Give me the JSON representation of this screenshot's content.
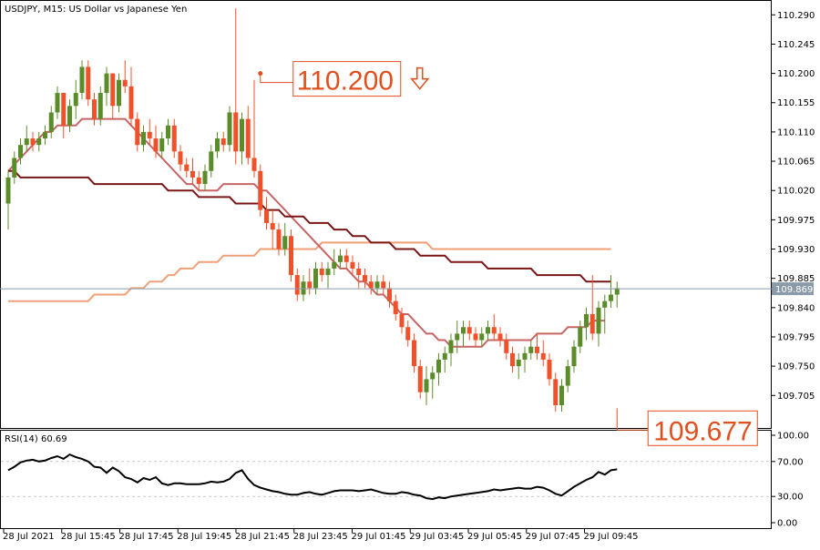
{
  "header": {
    "title": "USDJPY, M15:  US Dollar vs Japanese Yen"
  },
  "colors": {
    "bull": "#5b8c2a",
    "bear": "#f0502a",
    "ma_dark": "#7a1515",
    "ma_mid": "#c86464",
    "ma_light": "#f0a078",
    "price_line": "#8a9aa8",
    "annotation": "#e0501e",
    "grid": "#c8c8c8"
  },
  "chart_data": [
    {
      "type": "candlestick",
      "title": "USDJPY, M15:  US Dollar vs Japanese Yen",
      "ylim": [
        109.655,
        110.31
      ],
      "y_ticks": [
        "110.290",
        "110.245",
        "110.200",
        "110.155",
        "110.110",
        "110.065",
        "110.020",
        "109.975",
        "109.930",
        "109.885",
        "109.840",
        "109.795",
        "109.750",
        "109.705"
      ],
      "x_ticks": [
        "28 Jul 2021",
        "28 Jul 15:45",
        "28 Jul 17:45",
        "28 Jul 19:45",
        "28 Jul 21:45",
        "28 Jul 23:45",
        "29 Jul 01:45",
        "29 Jul 03:45",
        "29 Jul 05:45",
        "29 Jul 07:45",
        "29 Jul 09:45"
      ],
      "current_price": "109.869",
      "annotations": [
        {
          "label": "110.200",
          "arrow": "down-outline-arrow",
          "value": 110.2,
          "bar": 41
        },
        {
          "label": "109.677",
          "value": 109.677,
          "bar": 99
        }
      ],
      "candles": [
        [
          110.0,
          110.05,
          109.96,
          110.04
        ],
        [
          110.04,
          110.08,
          110.03,
          110.07
        ],
        [
          110.07,
          110.1,
          110.06,
          110.09
        ],
        [
          110.09,
          110.12,
          110.08,
          110.1
        ],
        [
          110.1,
          110.11,
          110.08,
          110.09
        ],
        [
          110.09,
          110.11,
          110.08,
          110.1
        ],
        [
          110.1,
          110.12,
          110.09,
          110.11
        ],
        [
          110.11,
          110.15,
          110.1,
          110.14
        ],
        [
          110.14,
          110.18,
          110.13,
          110.17
        ],
        [
          110.17,
          110.17,
          110.1,
          110.12
        ],
        [
          110.12,
          110.16,
          110.11,
          110.15
        ],
        [
          110.15,
          110.19,
          110.13,
          110.17
        ],
        [
          110.17,
          110.22,
          110.16,
          110.21
        ],
        [
          110.21,
          110.22,
          110.15,
          110.16
        ],
        [
          110.16,
          110.17,
          110.12,
          110.13
        ],
        [
          110.13,
          110.18,
          110.12,
          110.17
        ],
        [
          110.17,
          110.21,
          110.15,
          110.2
        ],
        [
          110.2,
          110.2,
          110.13,
          110.15
        ],
        [
          110.15,
          110.2,
          110.14,
          110.19
        ],
        [
          110.19,
          110.22,
          110.17,
          110.18
        ],
        [
          110.18,
          110.21,
          110.12,
          110.13
        ],
        [
          110.13,
          110.14,
          110.08,
          110.09
        ],
        [
          110.09,
          110.12,
          110.08,
          110.11
        ],
        [
          110.11,
          110.13,
          110.09,
          110.1
        ],
        [
          110.1,
          110.12,
          110.07,
          110.08
        ],
        [
          110.08,
          110.11,
          110.07,
          110.1
        ],
        [
          110.1,
          110.13,
          110.09,
          110.12
        ],
        [
          110.12,
          110.13,
          110.07,
          110.08
        ],
        [
          110.08,
          110.09,
          110.05,
          110.06
        ],
        [
          110.06,
          110.07,
          110.04,
          110.05
        ],
        [
          110.05,
          110.07,
          110.03,
          110.04
        ],
        [
          110.04,
          110.05,
          110.02,
          110.03
        ],
        [
          110.03,
          110.06,
          110.02,
          110.05
        ],
        [
          110.05,
          110.09,
          110.04,
          110.08
        ],
        [
          110.08,
          110.11,
          110.07,
          110.1
        ],
        [
          110.1,
          110.11,
          110.08,
          110.09
        ],
        [
          110.09,
          110.15,
          110.08,
          110.14
        ],
        [
          110.14,
          110.3,
          110.06,
          110.08
        ],
        [
          110.08,
          110.14,
          110.06,
          110.13
        ],
        [
          110.13,
          110.15,
          110.06,
          110.07
        ],
        [
          110.07,
          110.19,
          110.04,
          110.05
        ],
        [
          110.05,
          110.06,
          109.98,
          109.99
        ],
        [
          109.99,
          110.01,
          109.96,
          109.97
        ],
        [
          109.97,
          109.99,
          109.93,
          109.96
        ],
        [
          109.96,
          109.97,
          109.92,
          109.93
        ],
        [
          109.93,
          109.97,
          109.92,
          109.95
        ],
        [
          109.95,
          109.96,
          109.88,
          109.89
        ],
        [
          109.89,
          109.9,
          109.85,
          109.86
        ],
        [
          109.86,
          109.89,
          109.85,
          109.88
        ],
        [
          109.88,
          109.9,
          109.86,
          109.87
        ],
        [
          109.87,
          109.91,
          109.86,
          109.9
        ],
        [
          109.9,
          109.91,
          109.88,
          109.89
        ],
        [
          109.89,
          109.91,
          109.87,
          109.9
        ],
        [
          109.9,
          109.93,
          109.89,
          109.91
        ],
        [
          109.91,
          109.93,
          109.9,
          109.92
        ],
        [
          109.92,
          109.93,
          109.9,
          109.91
        ],
        [
          109.91,
          109.92,
          109.89,
          109.9
        ],
        [
          109.9,
          109.91,
          109.87,
          109.89
        ],
        [
          109.89,
          109.9,
          109.87,
          109.88
        ],
        [
          109.88,
          109.89,
          109.86,
          109.87
        ],
        [
          109.87,
          109.89,
          109.86,
          109.88
        ],
        [
          109.88,
          109.89,
          109.86,
          109.87
        ],
        [
          109.87,
          109.88,
          109.84,
          109.85
        ],
        [
          109.85,
          109.86,
          109.82,
          109.83
        ],
        [
          109.83,
          109.84,
          109.8,
          109.81
        ],
        [
          109.81,
          109.82,
          109.78,
          109.79
        ],
        [
          109.79,
          109.8,
          109.74,
          109.75
        ],
        [
          109.75,
          109.76,
          109.7,
          109.71
        ],
        [
          109.71,
          109.75,
          109.69,
          109.73
        ],
        [
          109.73,
          109.75,
          109.7,
          109.74
        ],
        [
          109.74,
          109.77,
          109.72,
          109.76
        ],
        [
          109.76,
          109.78,
          109.74,
          109.77
        ],
        [
          109.77,
          109.8,
          109.75,
          109.79
        ],
        [
          109.79,
          109.82,
          109.77,
          109.8
        ],
        [
          109.8,
          109.82,
          109.78,
          109.81
        ],
        [
          109.81,
          109.82,
          109.79,
          109.8
        ],
        [
          109.8,
          109.81,
          109.78,
          109.79
        ],
        [
          109.79,
          109.81,
          109.78,
          109.8
        ],
        [
          109.8,
          109.82,
          109.79,
          109.81
        ],
        [
          109.81,
          109.83,
          109.79,
          109.8
        ],
        [
          109.8,
          109.81,
          109.78,
          109.79
        ],
        [
          109.79,
          109.8,
          109.76,
          109.77
        ],
        [
          109.77,
          109.78,
          109.74,
          109.75
        ],
        [
          109.75,
          109.77,
          109.73,
          109.76
        ],
        [
          109.76,
          109.78,
          109.74,
          109.77
        ],
        [
          109.77,
          109.79,
          109.76,
          109.78
        ],
        [
          109.78,
          109.8,
          109.76,
          109.77
        ],
        [
          109.77,
          109.79,
          109.75,
          109.76
        ],
        [
          109.76,
          109.77,
          109.72,
          109.73
        ],
        [
          109.73,
          109.74,
          109.68,
          109.69
        ],
        [
          109.69,
          109.73,
          109.68,
          109.72
        ],
        [
          109.72,
          109.76,
          109.71,
          109.75
        ],
        [
          109.75,
          109.79,
          109.74,
          109.78
        ],
        [
          109.78,
          109.82,
          109.77,
          109.81
        ],
        [
          109.81,
          109.84,
          109.79,
          109.83
        ],
        [
          109.83,
          109.89,
          109.79,
          109.8
        ],
        [
          109.8,
          109.85,
          109.78,
          109.84
        ],
        [
          109.84,
          109.86,
          109.8,
          109.85
        ],
        [
          109.85,
          109.89,
          109.84,
          109.86
        ],
        [
          109.86,
          109.88,
          109.84,
          109.87
        ]
      ],
      "ma_fast": [
        110.05,
        110.06,
        110.07,
        110.08,
        110.09,
        110.1,
        110.11,
        110.11,
        110.12,
        110.12,
        110.12,
        110.12,
        110.13,
        110.13,
        110.13,
        110.13,
        110.13,
        110.13,
        110.13,
        110.13,
        110.12,
        110.11,
        110.1,
        110.09,
        110.08,
        110.07,
        110.06,
        110.05,
        110.04,
        110.03,
        110.03,
        110.02,
        110.02,
        110.02,
        110.02,
        110.03,
        110.03,
        110.03,
        110.03,
        110.03,
        110.03,
        110.02,
        110.02,
        110.01,
        110.0,
        109.99,
        109.98,
        109.97,
        109.96,
        109.95,
        109.94,
        109.93,
        109.92,
        109.91,
        109.9,
        109.9,
        109.89,
        109.88,
        109.88,
        109.87,
        109.86,
        109.86,
        109.85,
        109.84,
        109.83,
        109.83,
        109.82,
        109.81,
        109.8,
        109.8,
        109.79,
        109.79,
        109.78,
        109.78,
        109.78,
        109.78,
        109.78,
        109.78,
        109.79,
        109.79,
        109.79,
        109.79,
        109.79,
        109.79,
        109.79,
        109.79,
        109.8,
        109.8,
        109.8,
        109.8,
        109.8,
        109.81,
        109.81,
        109.81,
        109.81,
        109.82,
        109.82,
        109.82
      ],
      "ma_slow": [
        110.05,
        110.05,
        110.04,
        110.04,
        110.04,
        110.04,
        110.04,
        110.04,
        110.04,
        110.04,
        110.04,
        110.04,
        110.04,
        110.04,
        110.03,
        110.03,
        110.03,
        110.03,
        110.03,
        110.03,
        110.03,
        110.03,
        110.03,
        110.03,
        110.03,
        110.03,
        110.02,
        110.02,
        110.02,
        110.02,
        110.02,
        110.01,
        110.01,
        110.01,
        110.01,
        110.01,
        110.01,
        110.0,
        110.0,
        110.0,
        110.0,
        110.0,
        109.99,
        109.99,
        109.99,
        109.98,
        109.98,
        109.98,
        109.98,
        109.97,
        109.97,
        109.97,
        109.97,
        109.96,
        109.96,
        109.96,
        109.95,
        109.95,
        109.95,
        109.94,
        109.94,
        109.94,
        109.94,
        109.93,
        109.93,
        109.93,
        109.93,
        109.92,
        109.92,
        109.92,
        109.92,
        109.92,
        109.91,
        109.91,
        109.91,
        109.91,
        109.91,
        109.91,
        109.9,
        109.9,
        109.9,
        109.9,
        109.9,
        109.9,
        109.9,
        109.9,
        109.89,
        109.89,
        109.89,
        109.89,
        109.89,
        109.89,
        109.89,
        109.89,
        109.88,
        109.88,
        109.88,
        109.88,
        109.88
      ],
      "ma_light": [
        109.85,
        109.85,
        109.85,
        109.85,
        109.85,
        109.85,
        109.85,
        109.85,
        109.85,
        109.85,
        109.85,
        109.85,
        109.85,
        109.85,
        109.86,
        109.86,
        109.86,
        109.86,
        109.86,
        109.86,
        109.87,
        109.87,
        109.87,
        109.88,
        109.88,
        109.88,
        109.89,
        109.89,
        109.9,
        109.9,
        109.9,
        109.91,
        109.91,
        109.91,
        109.91,
        109.92,
        109.92,
        109.92,
        109.92,
        109.92,
        109.92,
        109.93,
        109.93,
        109.93,
        109.93,
        109.93,
        109.93,
        109.93,
        109.93,
        109.93,
        109.93,
        109.94,
        109.94,
        109.94,
        109.94,
        109.94,
        109.94,
        109.94,
        109.94,
        109.94,
        109.94,
        109.94,
        109.94,
        109.94,
        109.94,
        109.94,
        109.94,
        109.94,
        109.94,
        109.93,
        109.93,
        109.93,
        109.93,
        109.93,
        109.93,
        109.93,
        109.93,
        109.93,
        109.93,
        109.93,
        109.93,
        109.93,
        109.93,
        109.93,
        109.93,
        109.93,
        109.93,
        109.93,
        109.93,
        109.93,
        109.93,
        109.93,
        109.93,
        109.93,
        109.93,
        109.93,
        109.93,
        109.93,
        109.93
      ]
    },
    {
      "type": "line",
      "title": "RSI(14) 60.69",
      "ylim": [
        0,
        100
      ],
      "y_ticks": [
        "100.00",
        "70.00",
        "30.00",
        "0.00"
      ],
      "levels": [
        70,
        30
      ],
      "values": [
        60,
        64,
        69,
        71,
        72,
        70,
        71,
        74,
        76,
        73,
        78,
        75,
        73,
        70,
        64,
        63,
        57,
        63,
        59,
        52,
        50,
        46,
        51,
        49,
        52,
        45,
        43,
        45,
        45,
        44,
        44,
        44,
        45,
        47,
        46,
        47,
        50,
        57,
        60,
        50,
        43,
        40,
        38,
        36,
        35,
        33,
        32,
        32,
        34,
        35,
        33,
        32,
        34,
        36,
        37,
        37,
        37,
        36,
        37,
        38,
        36,
        34,
        33,
        33,
        35,
        34,
        32,
        31,
        28,
        27,
        29,
        28,
        30,
        31,
        32,
        33,
        34,
        35,
        36,
        38,
        37,
        38,
        39,
        40,
        39,
        39,
        41,
        40,
        37,
        33,
        31,
        36,
        41,
        45,
        49,
        52,
        58,
        55,
        60,
        61
      ]
    }
  ]
}
